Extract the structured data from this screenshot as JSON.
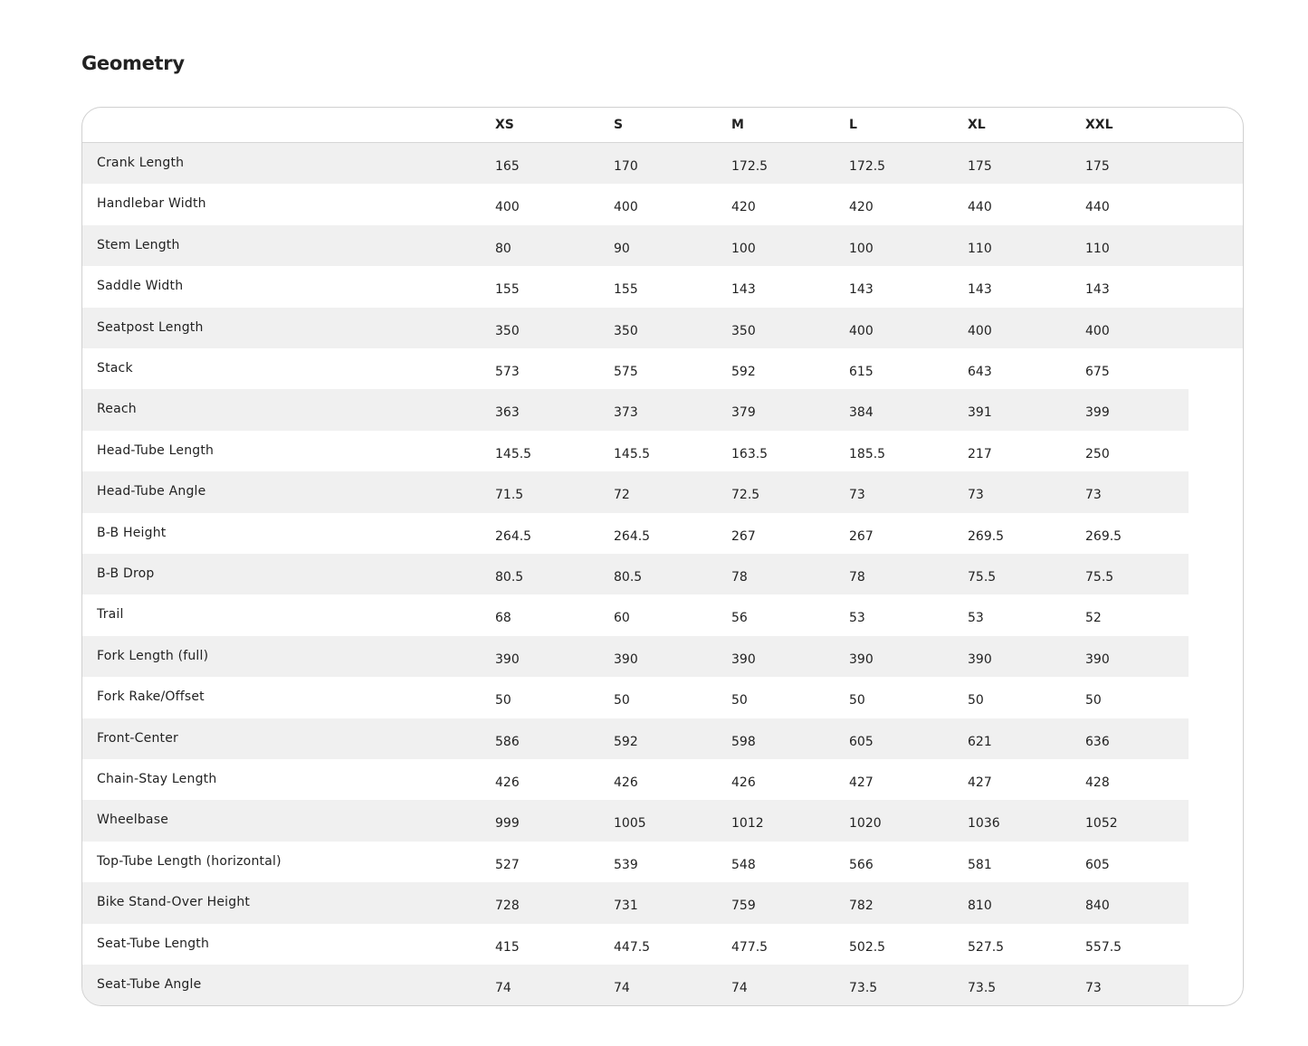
{
  "title": "Geometry",
  "sizes": [
    "XS",
    "S",
    "M",
    "L",
    "XL",
    "XXL"
  ],
  "rows": [
    {
      "label": "Crank Length",
      "values": [
        "165",
        "170",
        "172.5",
        "172.5",
        "175",
        "175"
      ]
    },
    {
      "label": "Handlebar Width",
      "values": [
        "400",
        "400",
        "420",
        "420",
        "440",
        "440"
      ]
    },
    {
      "label": "Stem Length",
      "values": [
        "80",
        "90",
        "100",
        "100",
        "110",
        "110"
      ]
    },
    {
      "label": "Saddle Width",
      "values": [
        "155",
        "155",
        "143",
        "143",
        "143",
        "143"
      ]
    },
    {
      "label": "Seatpost Length",
      "values": [
        "350",
        "350",
        "350",
        "400",
        "400",
        "400"
      ]
    },
    {
      "label": "Stack",
      "values": [
        "573",
        "575",
        "592",
        "615",
        "643",
        "675"
      ]
    },
    {
      "label": "Reach",
      "values": [
        "363",
        "373",
        "379",
        "384",
        "391",
        "399"
      ]
    },
    {
      "label": "Head-Tube Length",
      "values": [
        "145.5",
        "145.5",
        "163.5",
        "185.5",
        "217",
        "250"
      ]
    },
    {
      "label": "Head-Tube Angle",
      "values": [
        "71.5",
        "72",
        "72.5",
        "73",
        "73",
        "73"
      ]
    },
    {
      "label": "B-B Height",
      "values": [
        "264.5",
        "264.5",
        "267",
        "267",
        "269.5",
        "269.5"
      ]
    },
    {
      "label": "B-B Drop",
      "values": [
        "80.5",
        "80.5",
        "78",
        "78",
        "75.5",
        "75.5"
      ]
    },
    {
      "label": "Trail",
      "values": [
        "68",
        "60",
        "56",
        "53",
        "53",
        "52"
      ]
    },
    {
      "label": "Fork Length (full)",
      "values": [
        "390",
        "390",
        "390",
        "390",
        "390",
        "390"
      ]
    },
    {
      "label": "Fork Rake/Offset",
      "values": [
        "50",
        "50",
        "50",
        "50",
        "50",
        "50"
      ]
    },
    {
      "label": "Front-Center",
      "values": [
        "586",
        "592",
        "598",
        "605",
        "621",
        "636"
      ]
    },
    {
      "label": "Chain-Stay Length",
      "values": [
        "426",
        "426",
        "426",
        "427",
        "427",
        "428"
      ]
    },
    {
      "label": "Wheelbase",
      "values": [
        "999",
        "1005",
        "1012",
        "1020",
        "1036",
        "1052"
      ]
    },
    {
      "label": "Top-Tube Length (horizontal)",
      "values": [
        "527",
        "539",
        "548",
        "566",
        "581",
        "605"
      ]
    },
    {
      "label": "Bike Stand-Over Height",
      "values": [
        "728",
        "731",
        "759",
        "782",
        "810",
        "840"
      ]
    },
    {
      "label": "Seat-Tube Length",
      "values": [
        "415",
        "447.5",
        "477.5",
        "502.5",
        "527.5",
        "557.5"
      ]
    },
    {
      "label": "Seat-Tube Angle",
      "values": [
        "74",
        "74",
        "74",
        "73.5",
        "73.5",
        "73"
      ]
    }
  ]
}
